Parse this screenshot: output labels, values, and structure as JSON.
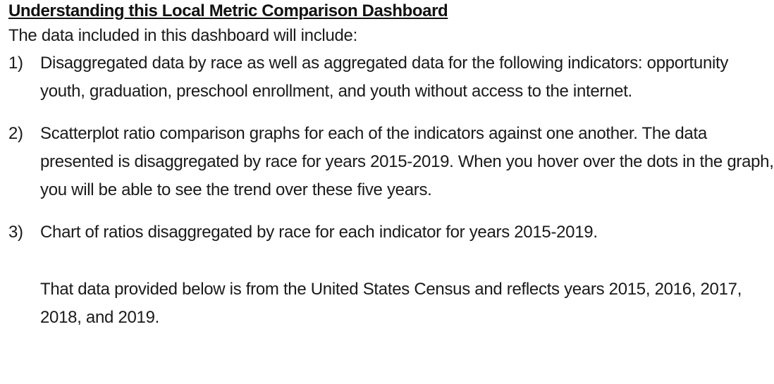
{
  "document": {
    "title": "Understanding this Local Metric Comparison Dashboard",
    "intro": "The data included in this dashboard will include:",
    "items": [
      {
        "marker": "1)",
        "text": "Disaggregated data by race as well as aggregated data for the following indicators: opportunity youth, graduation, preschool enrollment, and youth without access to the internet."
      },
      {
        "marker": "2)",
        "text": "Scatterplot ratio comparison graphs for each of the indicators against one another. The data presented is disaggregated by race for years 2015-2019.  When you hover over the dots in the graph, you will be able to see the trend over these five years."
      },
      {
        "marker": "3)",
        "text": "Chart of ratios disaggregated by race for each indicator for years 2015-2019."
      }
    ],
    "note": "That data provided below is from the United States Census and reflects years 2015, 2016, 2017, 2018, and 2019."
  }
}
